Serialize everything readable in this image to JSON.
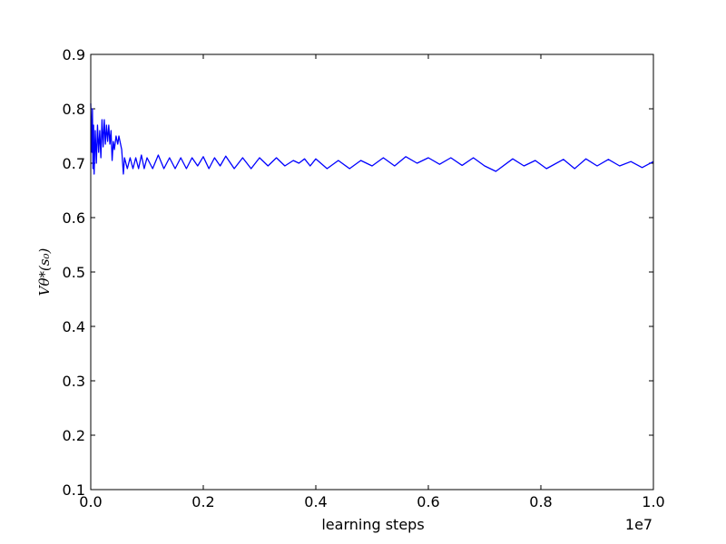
{
  "chart_data": {
    "type": "line",
    "ylabel": "Vθ*(s₀)",
    "xlabel": "learning steps",
    "x_offset_text": "1e7",
    "x": [
      0,
      0.002,
      0.003,
      0.004,
      0.005,
      0.006,
      0.008,
      0.01,
      0.012,
      0.014,
      0.016,
      0.018,
      0.02,
      0.022,
      0.024,
      0.026,
      0.028,
      0.03,
      0.032,
      0.034,
      0.036,
      0.038,
      0.04,
      0.042,
      0.045,
      0.048,
      0.05,
      0.055,
      0.058,
      0.06,
      0.065,
      0.07,
      0.075,
      0.08,
      0.085,
      0.09,
      0.095,
      0.1,
      0.11,
      0.12,
      0.13,
      0.14,
      0.15,
      0.16,
      0.17,
      0.18,
      0.19,
      0.2,
      0.21,
      0.22,
      0.23,
      0.24,
      0.255,
      0.27,
      0.285,
      0.3,
      0.315,
      0.33,
      0.345,
      0.36,
      0.37,
      0.38,
      0.39,
      0.4,
      0.42,
      0.44,
      0.46,
      0.48,
      0.5,
      0.52,
      0.54,
      0.56,
      0.58,
      0.6,
      0.62,
      0.64,
      0.66,
      0.68,
      0.7,
      0.72,
      0.75,
      0.77,
      0.79,
      0.81,
      0.84,
      0.86,
      0.88,
      0.9,
      0.92,
      0.94,
      0.96,
      0.98,
      1.0
    ],
    "series": [
      {
        "color": "#0000ff",
        "values": [
          0.81,
          0.72,
          0.8,
          0.69,
          0.77,
          0.68,
          0.76,
          0.7,
          0.77,
          0.72,
          0.76,
          0.71,
          0.78,
          0.73,
          0.78,
          0.735,
          0.77,
          0.74,
          0.77,
          0.735,
          0.76,
          0.705,
          0.74,
          0.725,
          0.75,
          0.735,
          0.75,
          0.725,
          0.68,
          0.71,
          0.69,
          0.71,
          0.69,
          0.71,
          0.69,
          0.715,
          0.69,
          0.71,
          0.69,
          0.715,
          0.69,
          0.71,
          0.69,
          0.71,
          0.69,
          0.71,
          0.695,
          0.712,
          0.69,
          0.71,
          0.695,
          0.713,
          0.69,
          0.71,
          0.69,
          0.71,
          0.695,
          0.71,
          0.695,
          0.705,
          0.7,
          0.708,
          0.695,
          0.708,
          0.69,
          0.705,
          0.69,
          0.705,
          0.695,
          0.71,
          0.695,
          0.712,
          0.7,
          0.71,
          0.698,
          0.71,
          0.696,
          0.71,
          0.695,
          0.685,
          0.708,
          0.695,
          0.705,
          0.69,
          0.707,
          0.69,
          0.708,
          0.695,
          0.707,
          0.695,
          0.703,
          0.692,
          0.703
        ]
      }
    ],
    "xlim": [
      0,
      1
    ],
    "ylim": [
      0.1,
      0.9
    ],
    "xticks": [
      {
        "value": 0,
        "label": "0.0"
      },
      0.2,
      0.4,
      0.6,
      0.8,
      {
        "value": 1,
        "label": "1.0"
      }
    ],
    "yticks": [
      0.1,
      0.2,
      0.3,
      0.4,
      0.5,
      0.6,
      0.7,
      0.8,
      0.9
    ],
    "grid": false
  }
}
